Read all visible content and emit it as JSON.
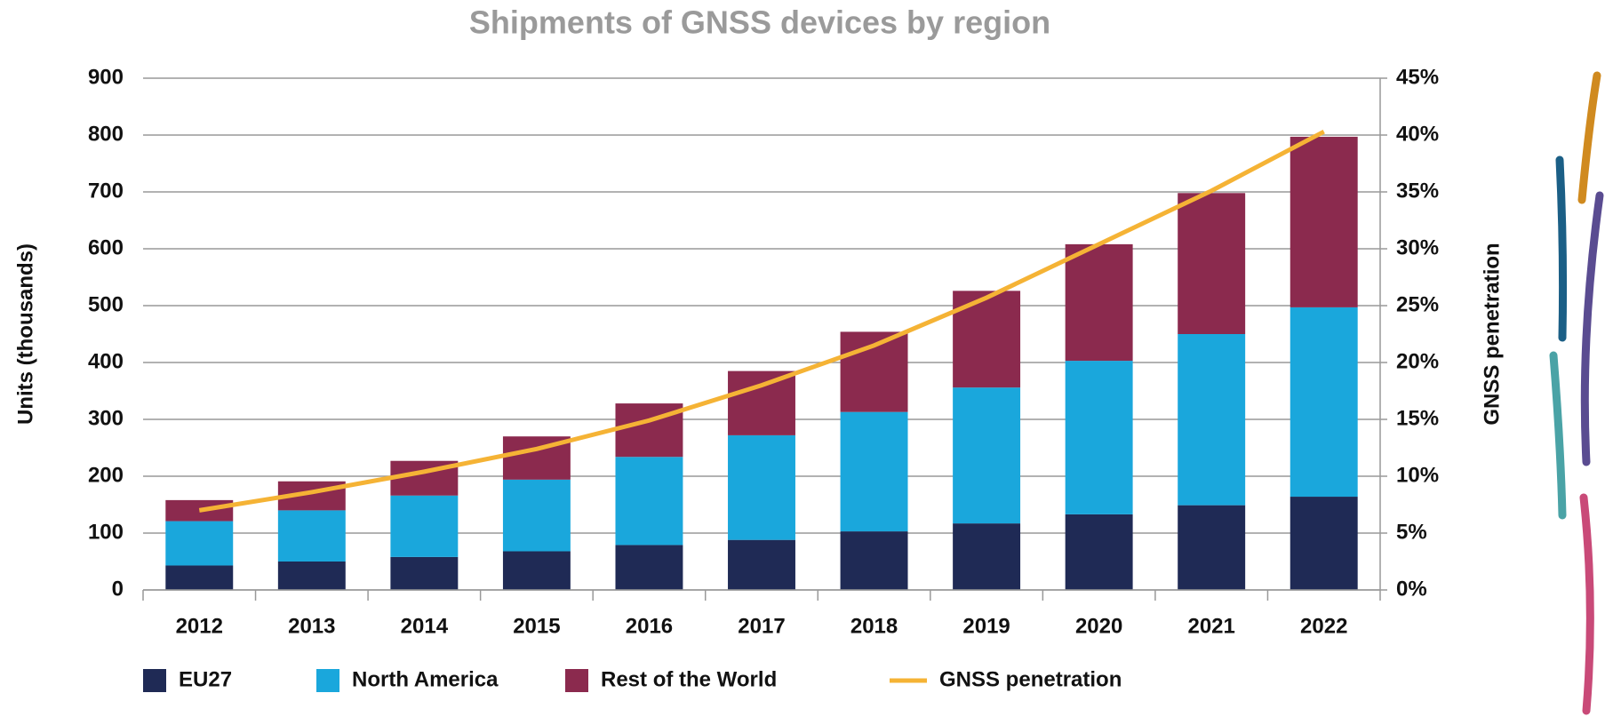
{
  "chart_data": {
    "type": "bar",
    "stacked": true,
    "title": "Shipments of GNSS devices by region",
    "y_label": "Units (thousands)",
    "y2_label": "GNSS penetration",
    "categories": [
      "2012",
      "2013",
      "2014",
      "2015",
      "2016",
      "2017",
      "2018",
      "2019",
      "2020",
      "2021",
      "2022"
    ],
    "series": [
      {
        "name": "EU27",
        "color": "#1f2a55",
        "values": [
          43,
          50,
          58,
          68,
          79,
          88,
          103,
          117,
          133,
          149,
          164
        ]
      },
      {
        "name": "North America",
        "color": "#1aa7dc",
        "values": [
          78,
          90,
          108,
          126,
          155,
          184,
          210,
          239,
          270,
          301,
          333
        ]
      },
      {
        "name": "Rest of the World",
        "color": "#8b2a4e",
        "values": [
          37,
          51,
          61,
          76,
          94,
          113,
          141,
          170,
          205,
          248,
          300
        ]
      },
      {
        "name": "GNSS penetration",
        "color": "#f5b335",
        "type": "line",
        "axis": "y2",
        "values": [
          7.0,
          8.6,
          10.4,
          12.4,
          14.9,
          18.0,
          21.5,
          25.7,
          30.4,
          35.1,
          40.3
        ]
      }
    ],
    "ylim": [
      0,
      900
    ],
    "yticks": [
      0,
      100,
      200,
      300,
      400,
      500,
      600,
      700,
      800,
      900
    ],
    "y2lim": [
      0,
      45
    ],
    "y2ticks": [
      {
        "value": 0,
        "label": "0%"
      },
      {
        "value": 5,
        "label": "5%"
      },
      {
        "value": 10,
        "label": "10%"
      },
      {
        "value": 15,
        "label": "15%"
      },
      {
        "value": 20,
        "label": "20%"
      },
      {
        "value": 25,
        "label": "25%"
      },
      {
        "value": 30,
        "label": "30%"
      },
      {
        "value": 35,
        "label": "35%"
      },
      {
        "value": 40,
        "label": "40%"
      },
      {
        "value": 45,
        "label": "45%"
      }
    ],
    "grid": true,
    "legend": "bottom"
  }
}
